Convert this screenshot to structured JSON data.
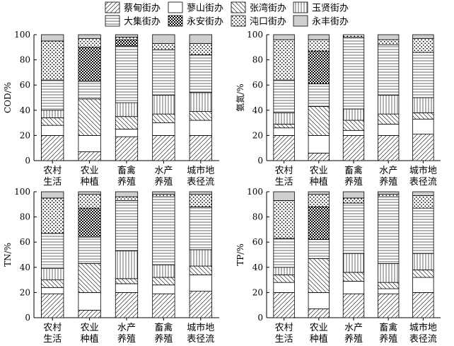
{
  "legend": {
    "items": [
      {
        "id": "caidian",
        "label": "蔡甸街办",
        "pattern": "diag-fwd"
      },
      {
        "id": "shenshan",
        "label": "蓼山街办",
        "pattern": "blank"
      },
      {
        "id": "zhangwan",
        "label": "张湾街办",
        "pattern": "diag-back"
      },
      {
        "id": "yuxian",
        "label": "玉贤街办",
        "pattern": "vert"
      },
      {
        "id": "daji",
        "label": "大集街办",
        "pattern": "horiz"
      },
      {
        "id": "yongan",
        "label": "永安街办",
        "pattern": "checker"
      },
      {
        "id": "zhakou",
        "label": "沌口街办",
        "pattern": "dots"
      },
      {
        "id": "yongfeng",
        "label": "永丰街办",
        "pattern": "gray"
      }
    ]
  },
  "colors": {
    "gray_fill": "#cfcfcf",
    "stroke": "#000000"
  },
  "chart_data": [
    {
      "type": "bar",
      "stacked": true,
      "ylabel": "COD/%",
      "ylim": [
        0,
        100
      ],
      "yticks": [
        0,
        20,
        40,
        60,
        80,
        100
      ],
      "categories": [
        "农村\n生活",
        "农业\n种植",
        "畜禽\n养殖",
        "水产\n养殖",
        "城市地\n表径流"
      ],
      "series": [
        {
          "name": "蔡甸街办",
          "values": [
            20,
            7,
            19,
            20,
            20
          ]
        },
        {
          "name": "蓼山街办",
          "values": [
            8,
            13,
            6,
            10,
            12
          ]
        },
        {
          "name": "张湾街办",
          "values": [
            6,
            29,
            10,
            7,
            7
          ]
        },
        {
          "name": "玉贤街办",
          "values": [
            6,
            0,
            11,
            15,
            15
          ]
        },
        {
          "name": "大集街办",
          "values": [
            24,
            14,
            45,
            36,
            30
          ]
        },
        {
          "name": "永安街办",
          "values": [
            0,
            27,
            5,
            0,
            0
          ]
        },
        {
          "name": "沌口街办",
          "values": [
            31,
            7,
            2,
            5,
            9
          ]
        },
        {
          "name": "永丰街办",
          "values": [
            5,
            3,
            2,
            7,
            7
          ]
        }
      ]
    },
    {
      "type": "bar",
      "stacked": true,
      "ylabel": "氨氮/%",
      "ylim": [
        0,
        100
      ],
      "yticks": [
        0,
        20,
        40,
        60,
        80,
        100
      ],
      "categories": [
        "农村\n生活",
        "农业\n种植",
        "畜禽\n养殖",
        "水产\n养殖",
        "城市地\n表径流"
      ],
      "series": [
        {
          "name": "蔡甸街办",
          "values": [
            20,
            6,
            20,
            20,
            21
          ]
        },
        {
          "name": "蓼山街办",
          "values": [
            6,
            14,
            4,
            9,
            12
          ]
        },
        {
          "name": "张湾街办",
          "values": [
            3,
            23,
            8,
            8,
            5
          ]
        },
        {
          "name": "玉贤街办",
          "values": [
            9,
            0,
            9,
            15,
            12
          ]
        },
        {
          "name": "大集街办",
          "values": [
            26,
            18,
            57,
            40,
            36
          ]
        },
        {
          "name": "永安街办",
          "values": [
            0,
            26,
            0,
            0,
            0
          ]
        },
        {
          "name": "沌口街办",
          "values": [
            32,
            9,
            2,
            4,
            11
          ]
        },
        {
          "name": "永丰街办",
          "values": [
            4,
            4,
            0,
            4,
            3
          ]
        }
      ]
    },
    {
      "type": "bar",
      "stacked": true,
      "ylabel": "TN/%",
      "ylim": [
        0,
        100
      ],
      "yticks": [
        0,
        20,
        40,
        60,
        80,
        100
      ],
      "categories": [
        "农村\n生活",
        "农业\n种植",
        "水产\n养殖",
        "畜禽\n养殖",
        "城市地\n表径流"
      ],
      "series": [
        {
          "name": "蔡甸街办",
          "values": [
            19,
            6,
            20,
            19,
            21
          ]
        },
        {
          "name": "蓼山街办",
          "values": [
            5,
            14,
            7,
            7,
            13
          ]
        },
        {
          "name": "张湾街办",
          "values": [
            6,
            23,
            4,
            6,
            7
          ]
        },
        {
          "name": "玉贤街办",
          "values": [
            9,
            0,
            22,
            10,
            13
          ]
        },
        {
          "name": "大集街办",
          "values": [
            28,
            21,
            40,
            54,
            34
          ]
        },
        {
          "name": "永安街办",
          "values": [
            0,
            23,
            0,
            0,
            0
          ]
        },
        {
          "name": "沌口街办",
          "values": [
            28,
            11,
            3,
            2,
            10
          ]
        },
        {
          "name": "永丰街办",
          "values": [
            5,
            2,
            4,
            2,
            2
          ]
        }
      ]
    },
    {
      "type": "bar",
      "stacked": true,
      "ylabel": "TP/%",
      "ylim": [
        0,
        100
      ],
      "yticks": [
        0,
        20,
        40,
        60,
        80,
        100
      ],
      "categories": [
        "农村\n生活",
        "农业\n种植",
        "水产\n养殖",
        "畜禽\n养殖",
        "城市地\n表径流"
      ],
      "series": [
        {
          "name": "蔡甸街办",
          "values": [
            20,
            7,
            19,
            19,
            20
          ]
        },
        {
          "name": "蓼山街办",
          "values": [
            8,
            13,
            10,
            4,
            12
          ]
        },
        {
          "name": "张湾街办",
          "values": [
            6,
            27,
            7,
            5,
            6
          ]
        },
        {
          "name": "玉贤街办",
          "values": [
            6,
            0,
            15,
            15,
            13
          ]
        },
        {
          "name": "大集街办",
          "values": [
            23,
            15,
            40,
            53,
            36
          ]
        },
        {
          "name": "永安街办",
          "values": [
            0,
            26,
            0,
            0,
            0
          ]
        },
        {
          "name": "沌口街办",
          "values": [
            30,
            10,
            4,
            2,
            10
          ]
        },
        {
          "name": "永丰街办",
          "values": [
            7,
            2,
            5,
            2,
            3
          ]
        }
      ]
    }
  ]
}
